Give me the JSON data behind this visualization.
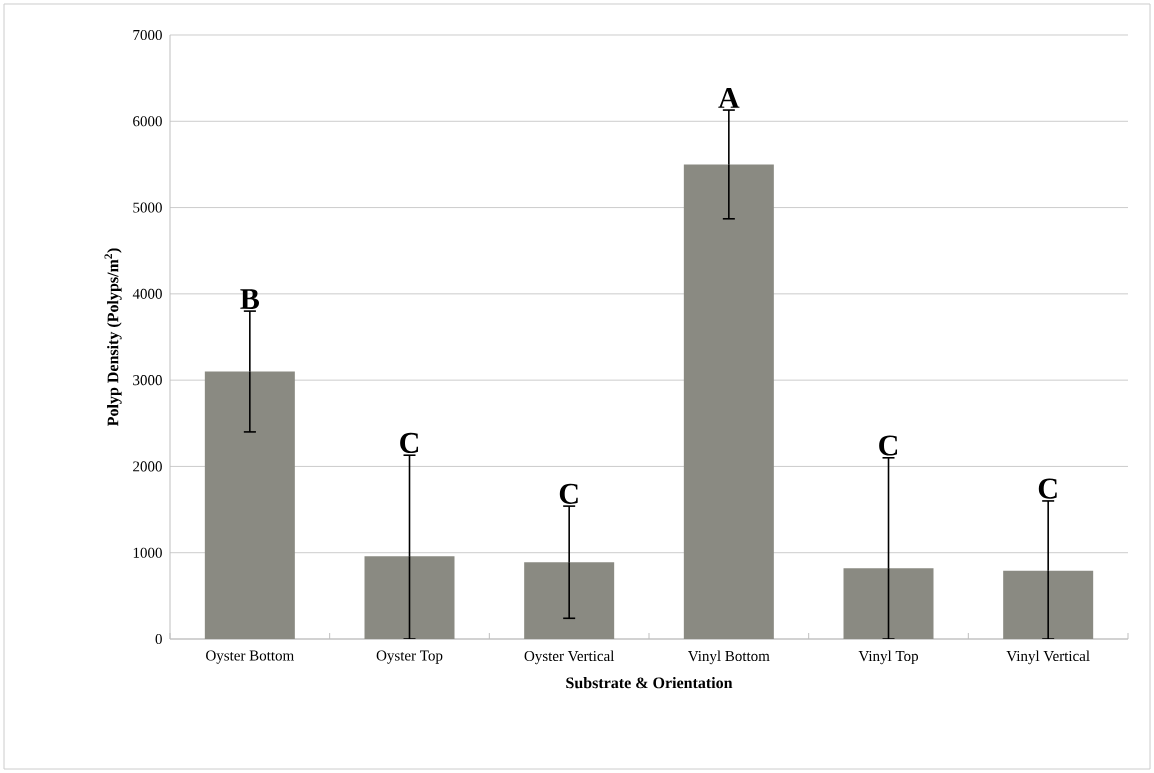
{
  "chart_data": {
    "type": "bar",
    "xlabel": "**Substrate & Orientation**",
    "ylabel": "**Polyp Density (Polyps/m$^{2}$)**",
    "categories": [
      "Oyster Bottom",
      "Oyster Top",
      "Oyster Vertical",
      "Vinyl Bottom",
      "Vinyl Top",
      "Vinyl Vertical"
    ],
    "values": [
      3100,
      960,
      890,
      5500,
      820,
      790
    ],
    "errors": [
      [
        2400,
        3800
      ],
      [
        0,
        2130
      ],
      [
        240,
        1540
      ],
      [
        4870,
        6130
      ],
      [
        0,
        2100
      ],
      [
        0,
        1600
      ]
    ],
    "color": "#8a8a82",
    "ylim": [
      0,
      7000
    ],
    "yticks": [
      0,
      1000,
      2000,
      3000,
      4000,
      5000,
      6000,
      7000
    ],
    "grid": "y",
    "annotations": [
      {
        "text": "B",
        "x": "Oyster Bottom",
        "y": 3800
      },
      {
        "text": "C",
        "x": "Oyster Top",
        "y": 2130
      },
      {
        "text": "C",
        "x": "Oyster Vertical",
        "y": 1540
      },
      {
        "text": "A",
        "x": "Vinyl Bottom",
        "y": 6130
      },
      {
        "text": "C",
        "x": "Vinyl Top",
        "y": 2100
      },
      {
        "text": "C",
        "x": "Vinyl Vertical",
        "y": 1600
      }
    ]
  }
}
